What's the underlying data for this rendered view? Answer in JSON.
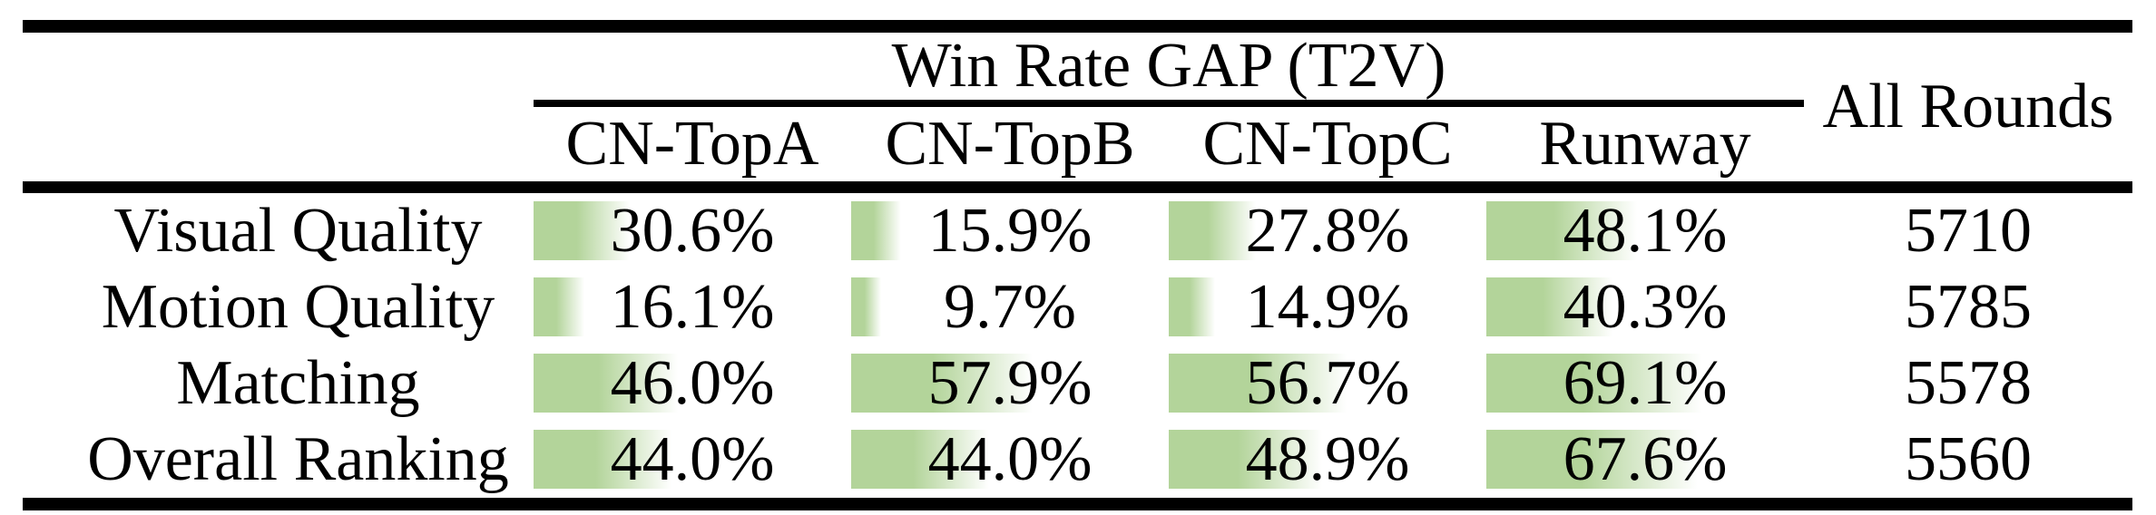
{
  "table": {
    "group_header": "Win Rate GAP (T2V)",
    "all_rounds_header": "All Rounds",
    "columns": [
      "CN-TopA",
      "CN-TopB",
      "CN-TopC",
      "Runway"
    ],
    "rows": [
      {
        "label": "Visual Quality",
        "values": [
          "30.6%",
          "15.9%",
          "27.8%",
          "48.1%"
        ],
        "all_rounds": "5710"
      },
      {
        "label": "Motion Quality",
        "values": [
          "16.1%",
          "9.7%",
          "14.9%",
          "40.3%"
        ],
        "all_rounds": "5785"
      },
      {
        "label": "Matching",
        "values": [
          "46.0%",
          "57.9%",
          "56.7%",
          "69.1%"
        ],
        "all_rounds": "5578"
      },
      {
        "label": "Overall Ranking",
        "values": [
          "44.0%",
          "44.0%",
          "48.9%",
          "67.6%"
        ],
        "all_rounds": "5560"
      }
    ],
    "colors": {
      "bar_green": "#b3d49a",
      "bar_fade": "#ffffff",
      "rule": "#000000"
    },
    "bar_scale_note": "bar width proportional to percentage; 100% = full column width"
  },
  "chart_data": {
    "type": "table",
    "title": "Win Rate GAP (T2V)",
    "columns": [
      "CN-TopA",
      "CN-TopB",
      "CN-TopC",
      "Runway",
      "All Rounds"
    ],
    "categories": [
      "Visual Quality",
      "Motion Quality",
      "Matching",
      "Overall Ranking"
    ],
    "series": [
      {
        "name": "CN-TopA",
        "values": [
          30.6,
          16.1,
          46.0,
          44.0
        ]
      },
      {
        "name": "CN-TopB",
        "values": [
          15.9,
          9.7,
          57.9,
          44.0
        ]
      },
      {
        "name": "CN-TopC",
        "values": [
          27.8,
          14.9,
          56.7,
          48.9
        ]
      },
      {
        "name": "Runway",
        "values": [
          48.1,
          40.3,
          69.1,
          67.6
        ]
      }
    ],
    "all_rounds": [
      5710,
      5785,
      5578,
      5560
    ],
    "unit": "%",
    "value_range": [
      0,
      100
    ],
    "layout": "in-cell green gradient data bars, left-anchored, behind centered value text"
  }
}
